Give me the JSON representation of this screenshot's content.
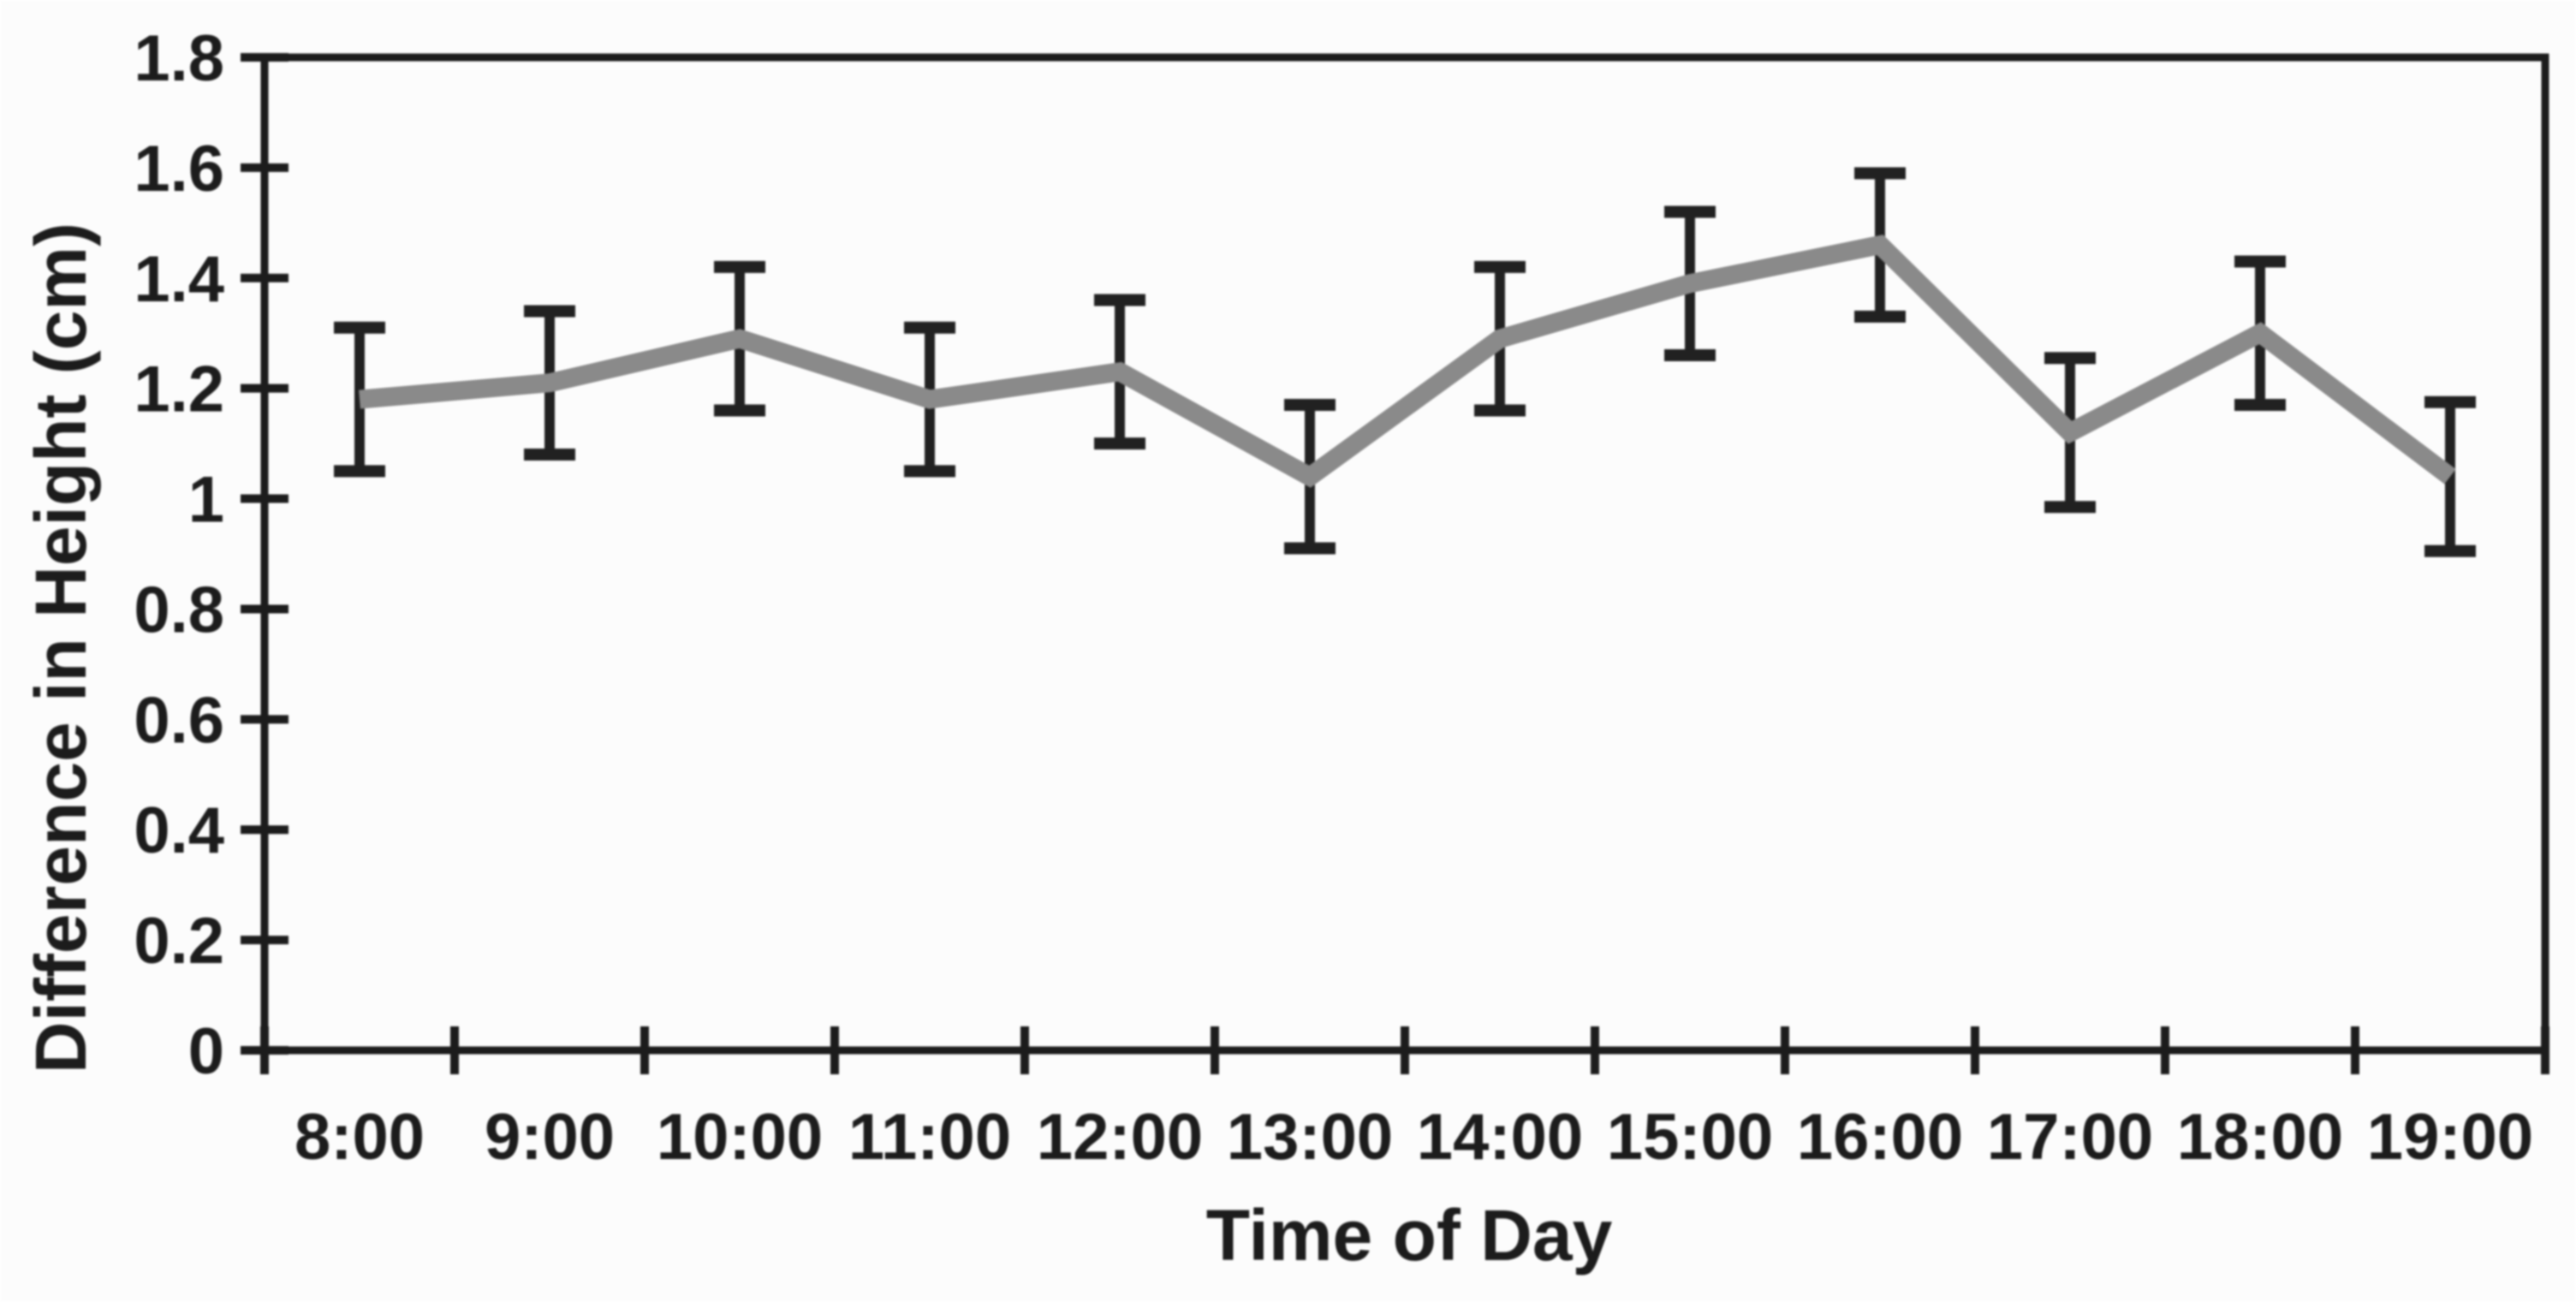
{
  "chart_data": {
    "type": "line",
    "title": "",
    "xlabel": "Time of Day",
    "ylabel": "Difference in Height (cm)",
    "categories": [
      "8:00",
      "9:00",
      "10:00",
      "11:00",
      "12:00",
      "13:00",
      "14:00",
      "15:00",
      "16:00",
      "17:00",
      "18:00",
      "19:00"
    ],
    "series": [
      {
        "name": "Difference in Height",
        "values": [
          1.18,
          1.21,
          1.29,
          1.18,
          1.23,
          1.04,
          1.29,
          1.39,
          1.46,
          1.12,
          1.3,
          1.04
        ],
        "error_bars": [
          0.13,
          0.13,
          0.13,
          0.13,
          0.13,
          0.13,
          0.13,
          0.13,
          0.13,
          0.135,
          0.13,
          0.135
        ]
      }
    ],
    "ylim": [
      0,
      1.8
    ],
    "y_tick_step": 0.2,
    "y_tick_labels": [
      "0",
      "0.2",
      "0.4",
      "0.6",
      "0.8",
      "1",
      "1.2",
      "1.4",
      "1.6",
      "1.8"
    ],
    "x_tick_placement": "between-categories",
    "grid": "off",
    "legend": "none",
    "frame": "box",
    "colors": {
      "line": "#8a8a8a",
      "error_bar": "#1f1f1f",
      "axis": "#1a1a1a",
      "text": "#1a1a1a",
      "background": "#ffffff"
    }
  }
}
